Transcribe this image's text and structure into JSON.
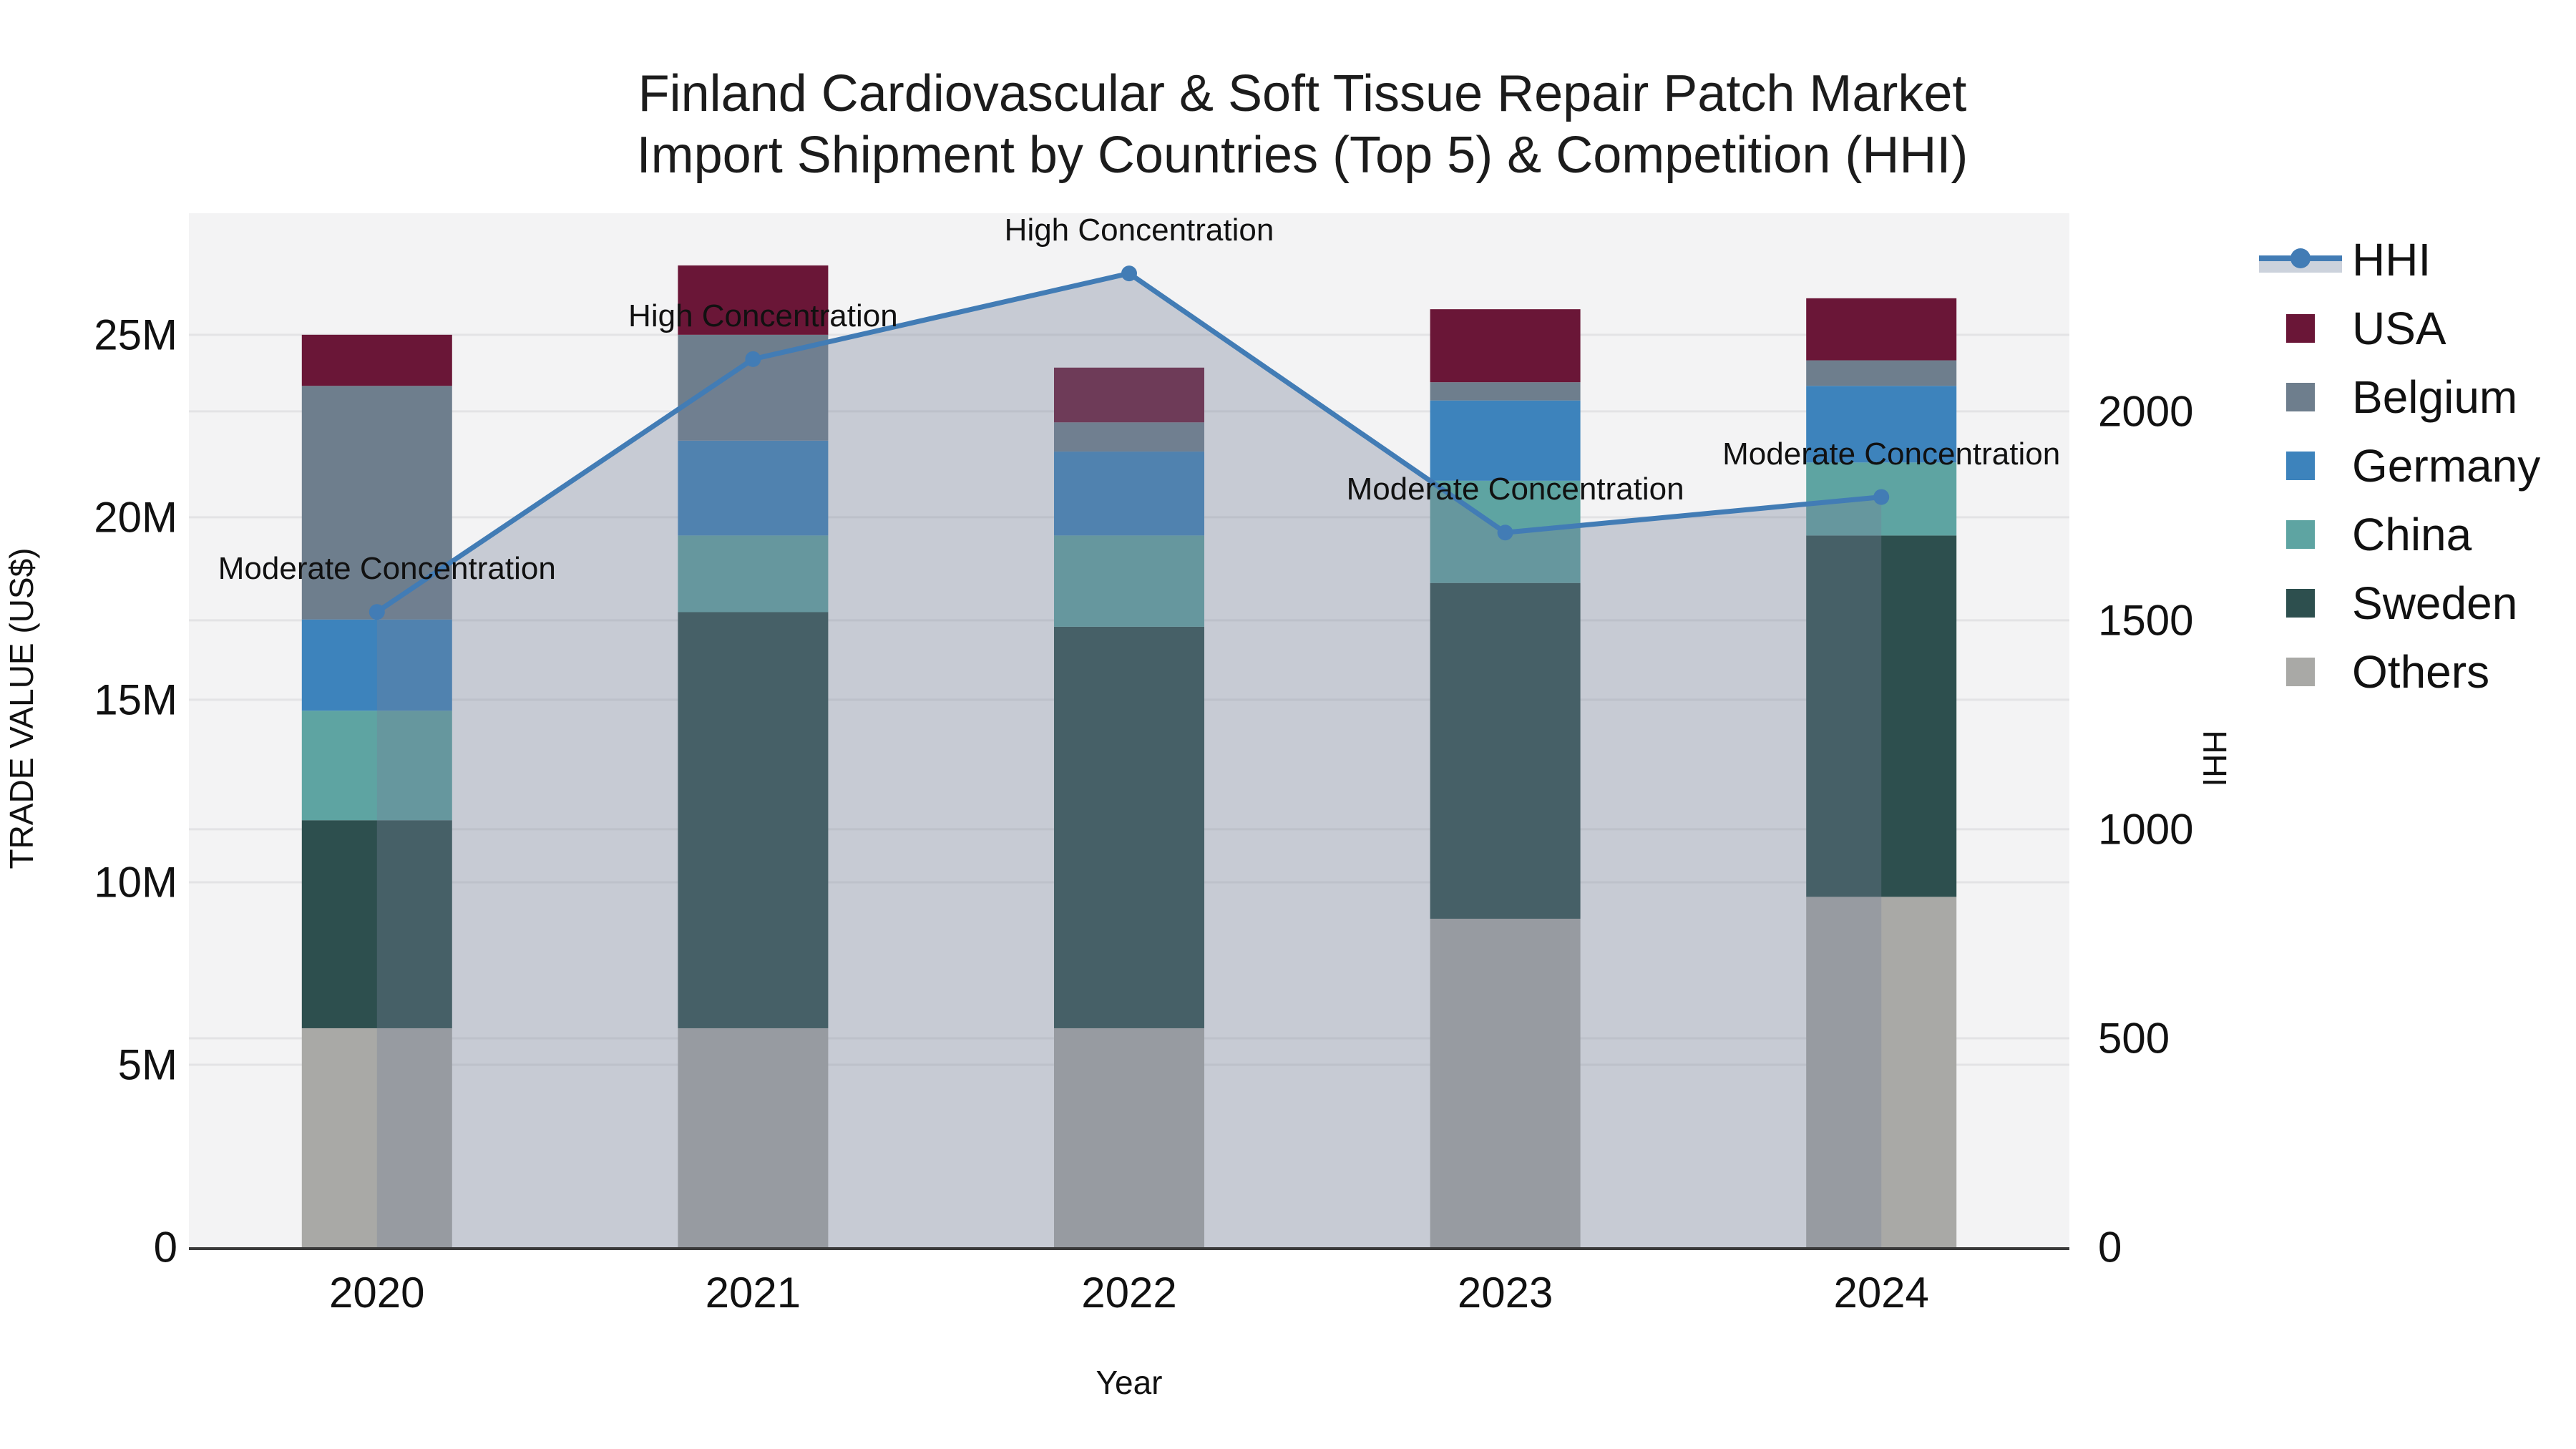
{
  "title": {
    "line1": "Finland Cardiovascular & Soft Tissue Repair Patch Market",
    "line2": "Import Shipment by Countries (Top 5) & Competition (HHI)"
  },
  "axes": {
    "x": {
      "title": "Year",
      "categories": [
        "2020",
        "2021",
        "2022",
        "2023",
        "2024"
      ]
    },
    "y_left": {
      "title": "TRADE VALUE (US$)",
      "tick_labels": [
        "0",
        "5M",
        "10M",
        "15M",
        "20M",
        "25M"
      ],
      "tick_values": [
        0,
        5,
        10,
        15,
        20,
        25
      ]
    },
    "y_right": {
      "title": "HHI",
      "tick_labels": [
        "0",
        "500",
        "1000",
        "1500",
        "2000"
      ],
      "tick_values": [
        0,
        500,
        1000,
        1500,
        2000
      ]
    }
  },
  "legend": {
    "items": [
      {
        "label": "HHI",
        "icon": "line-marker",
        "color": "#427CB5"
      },
      {
        "label": "USA",
        "icon": "square",
        "color": "#6A1637"
      },
      {
        "label": "Belgium",
        "icon": "square",
        "color": "#6E7E8D"
      },
      {
        "label": "Germany",
        "icon": "square",
        "color": "#3D83BC"
      },
      {
        "label": "China",
        "icon": "square",
        "color": "#5EA4A2"
      },
      {
        "label": "Sweden",
        "icon": "square",
        "color": "#2D4F4E"
      },
      {
        "label": "Others",
        "icon": "square",
        "color": "#A9A9A6"
      }
    ]
  },
  "annotations": [
    {
      "year": "2020",
      "text": "Moderate Concentration"
    },
    {
      "year": "2021",
      "text": "High Concentration"
    },
    {
      "year": "2022",
      "text": "High Concentration"
    },
    {
      "year": "2023",
      "text": "Moderate Concentration"
    },
    {
      "year": "2024",
      "text": "Moderate Concentration"
    }
  ],
  "chart_data": {
    "type": "bar",
    "subtype": "stacked-bars-with-line-overlay",
    "categories": [
      "2020",
      "2021",
      "2022",
      "2023",
      "2024"
    ],
    "units": "millions US$",
    "series": [
      {
        "name": "Others",
        "color": "#A9A9A6",
        "values": [
          6.0,
          6.0,
          6.0,
          9.0,
          9.6
        ]
      },
      {
        "name": "Sweden",
        "color": "#2D4F4E",
        "values": [
          5.7,
          11.4,
          11.0,
          9.2,
          9.9
        ]
      },
      {
        "name": "China",
        "color": "#5EA4A2",
        "values": [
          3.0,
          2.1,
          2.5,
          2.8,
          2.0
        ]
      },
      {
        "name": "Germany",
        "color": "#3D83BC",
        "values": [
          2.5,
          2.6,
          2.3,
          2.2,
          2.1
        ]
      },
      {
        "name": "Belgium",
        "color": "#6E7E8D",
        "values": [
          6.4,
          2.9,
          0.8,
          0.5,
          0.7
        ]
      },
      {
        "name": "USA",
        "color": "#6A1637",
        "values": [
          1.4,
          1.9,
          1.5,
          2.0,
          1.7
        ]
      }
    ],
    "bar_totals": [
      25.0,
      26.9,
      24.1,
      25.7,
      26.0
    ],
    "line_series": {
      "name": "HHI",
      "color": "#427CB5",
      "values": [
        1520,
        2125,
        2330,
        1710,
        1795
      ],
      "area_fill": "rgba(118,130,151,0.35)"
    },
    "xlabel": "Year",
    "ylabel_left": "TRADE VALUE (US$)",
    "ylabel_right": "HHI",
    "ylim_left": [
      0,
      28.33
    ],
    "ylim_right": [
      0,
      2474
    ],
    "grid": true,
    "legend_position": "right"
  },
  "colors": {
    "plot_bg": "#F3F3F4",
    "grid": "#E3E3E5",
    "axis_line": "#3A3A3A",
    "hhi_line": "#427CB5",
    "area_fill": "rgba(118,130,151,0.35)",
    "legend_band": "#CCD2DC",
    "text": "#111111"
  }
}
